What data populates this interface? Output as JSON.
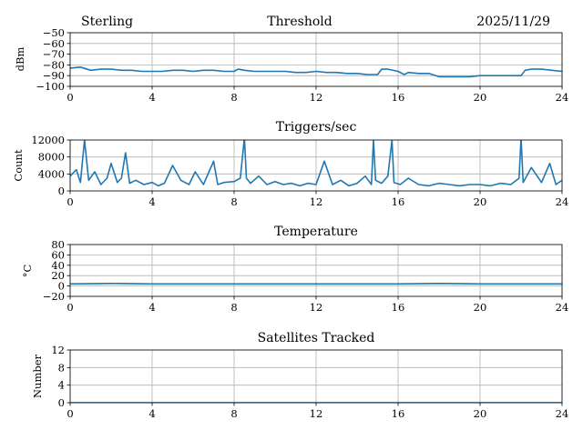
{
  "header": {
    "station": "Sterling",
    "date": "2025/11/29"
  },
  "colors": {
    "line": "#1f77b4",
    "grid": "#b0b0b0"
  },
  "chart_data": [
    {
      "id": "threshold",
      "type": "line",
      "title": "Threshold",
      "ylabel": "dBm",
      "xlim": [
        0,
        24
      ],
      "ylim": [
        -100,
        -50
      ],
      "xticks": [
        0,
        4,
        8,
        12,
        16,
        20,
        24
      ],
      "yticks": [
        -50,
        -60,
        -70,
        -80,
        -90,
        -100
      ],
      "ytick_labels": [
        "−50",
        "−60",
        "−70",
        "−80",
        "−90",
        "−100"
      ],
      "x": [
        0,
        0.5,
        1,
        1.5,
        2,
        2.5,
        3,
        3.5,
        4,
        4.5,
        5,
        5.5,
        6,
        6.5,
        7,
        7.5,
        8,
        8.2,
        8.5,
        9,
        9.5,
        10,
        10.5,
        11,
        11.5,
        12,
        12.5,
        13,
        13.5,
        14,
        14.5,
        15,
        15.2,
        15.5,
        16,
        16.3,
        16.5,
        17,
        17.5,
        18,
        18.5,
        19,
        19.5,
        20,
        20.5,
        21,
        21.5,
        22,
        22.2,
        22.5,
        23,
        23.5,
        24
      ],
      "y": [
        -83,
        -82,
        -85,
        -84,
        -84,
        -85,
        -85,
        -86,
        -86,
        -86,
        -85,
        -85,
        -86,
        -85,
        -85,
        -86,
        -86,
        -84,
        -85,
        -86,
        -86,
        -86,
        -86,
        -87,
        -87,
        -86,
        -87,
        -87,
        -88,
        -88,
        -89,
        -89,
        -84,
        -84,
        -86,
        -89,
        -87,
        -88,
        -88,
        -91,
        -91,
        -91,
        -91,
        -90,
        -90,
        -90,
        -90,
        -90,
        -85,
        -84,
        -84,
        -85,
        -86
      ],
      "grid": true
    },
    {
      "id": "triggers",
      "type": "line",
      "title": "Triggers/sec",
      "ylabel": "Count",
      "xlim": [
        0,
        24
      ],
      "ylim": [
        0,
        12000
      ],
      "xticks": [
        0,
        4,
        8,
        12,
        16,
        20,
        24
      ],
      "yticks": [
        0,
        4000,
        8000,
        12000
      ],
      "ytick_labels": [
        "0",
        "4000",
        "8000",
        "12000"
      ],
      "x": [
        0,
        0.3,
        0.5,
        0.6,
        0.7,
        0.9,
        1.2,
        1.5,
        1.8,
        2.0,
        2.3,
        2.5,
        2.7,
        2.9,
        3.2,
        3.6,
        4.0,
        4.3,
        4.6,
        5.0,
        5.4,
        5.8,
        6.1,
        6.5,
        7.0,
        7.2,
        7.5,
        8.0,
        8.3,
        8.5,
        8.6,
        8.8,
        9.2,
        9.6,
        10.0,
        10.4,
        10.8,
        11.2,
        11.6,
        12.0,
        12.4,
        12.8,
        13.2,
        13.6,
        14.0,
        14.4,
        14.7,
        14.8,
        14.9,
        15.2,
        15.5,
        15.7,
        15.8,
        16.1,
        16.5,
        17.0,
        17.5,
        18.0,
        18.5,
        19.0,
        19.5,
        20.0,
        20.5,
        21.0,
        21.5,
        21.9,
        22.0,
        22.1,
        22.5,
        23.0,
        23.4,
        23.7,
        24.0
      ],
      "y": [
        3500,
        5000,
        2000,
        7000,
        12000,
        2500,
        4500,
        1500,
        3000,
        6500,
        2000,
        3000,
        9000,
        1800,
        2500,
        1500,
        2000,
        1200,
        1800,
        6000,
        2500,
        1500,
        4500,
        1500,
        7000,
        1500,
        2000,
        2200,
        3000,
        12500,
        3000,
        1800,
        3500,
        1500,
        2200,
        1500,
        1800,
        1200,
        1800,
        1500,
        7000,
        1500,
        2500,
        1200,
        1800,
        3500,
        1500,
        12000,
        2500,
        1800,
        3500,
        12000,
        2000,
        1500,
        3000,
        1500,
        1200,
        1800,
        1500,
        1200,
        1500,
        1500,
        1200,
        1800,
        1500,
        3000,
        12500,
        2000,
        5500,
        2000,
        6500,
        1500,
        2500
      ],
      "grid": true
    },
    {
      "id": "temperature",
      "type": "line",
      "title": "Temperature",
      "ylabel": "°C",
      "xlim": [
        0,
        24
      ],
      "ylim": [
        -20,
        80
      ],
      "xticks": [
        0,
        4,
        8,
        12,
        16,
        20,
        24
      ],
      "yticks": [
        -20,
        0,
        20,
        40,
        60,
        80
      ],
      "ytick_labels": [
        "−20",
        "0",
        "20",
        "40",
        "60",
        "80"
      ],
      "x": [
        0,
        2,
        4,
        6,
        8,
        10,
        12,
        14,
        16,
        18,
        20,
        22,
        24
      ],
      "y": [
        4,
        5,
        4,
        4,
        4,
        4,
        4,
        4,
        4,
        5,
        4,
        4,
        4
      ],
      "grid": true
    },
    {
      "id": "satellites",
      "type": "line",
      "title": "Satellites Tracked",
      "ylabel": "Number",
      "xlim": [
        0,
        24
      ],
      "ylim": [
        0,
        12
      ],
      "xticks": [
        0,
        4,
        8,
        12,
        16,
        20,
        24
      ],
      "yticks": [
        0,
        4,
        8,
        12
      ],
      "ytick_labels": [
        "0",
        "4",
        "8",
        "12"
      ],
      "x": [
        0,
        24
      ],
      "y": [
        0,
        0
      ],
      "grid": true
    }
  ]
}
